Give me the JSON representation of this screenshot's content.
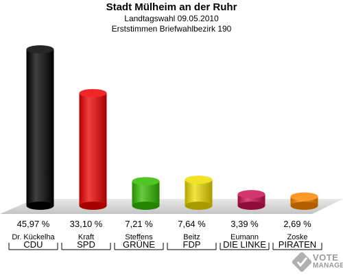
{
  "header": {
    "title": "Stadt Mülheim an der Ruhr",
    "subtitle1": "Landtagswahl 09.05.2010",
    "subtitle2": "Erststimmen Briefwahlbezirk 190"
  },
  "logo": {
    "line1": "VOTE",
    "line2": "MANAGER"
  },
  "chart_data": {
    "type": "bar",
    "categories": [
      "CDU",
      "SPD",
      "GRÜNE",
      "FDP",
      "DIE LINKE",
      "PIRATEN"
    ],
    "candidates": [
      "Dr. Kückelha",
      "Kraft",
      "Steffens",
      "Beitz",
      "Eumann",
      "Zoske"
    ],
    "values": [
      45.97,
      33.1,
      7.21,
      7.64,
      3.39,
      2.69
    ],
    "value_labels": [
      "45,97 %",
      "33,10 %",
      "7,21 %",
      "7,64 %",
      "3,39 %",
      "2,69 %"
    ],
    "colors": [
      "#000000",
      "#ee0000",
      "#33bb00",
      "#eedd00",
      "#cc1155",
      "#ff8800"
    ],
    "ylim": [
      0,
      45.97
    ],
    "grid": false,
    "legend": "none"
  }
}
